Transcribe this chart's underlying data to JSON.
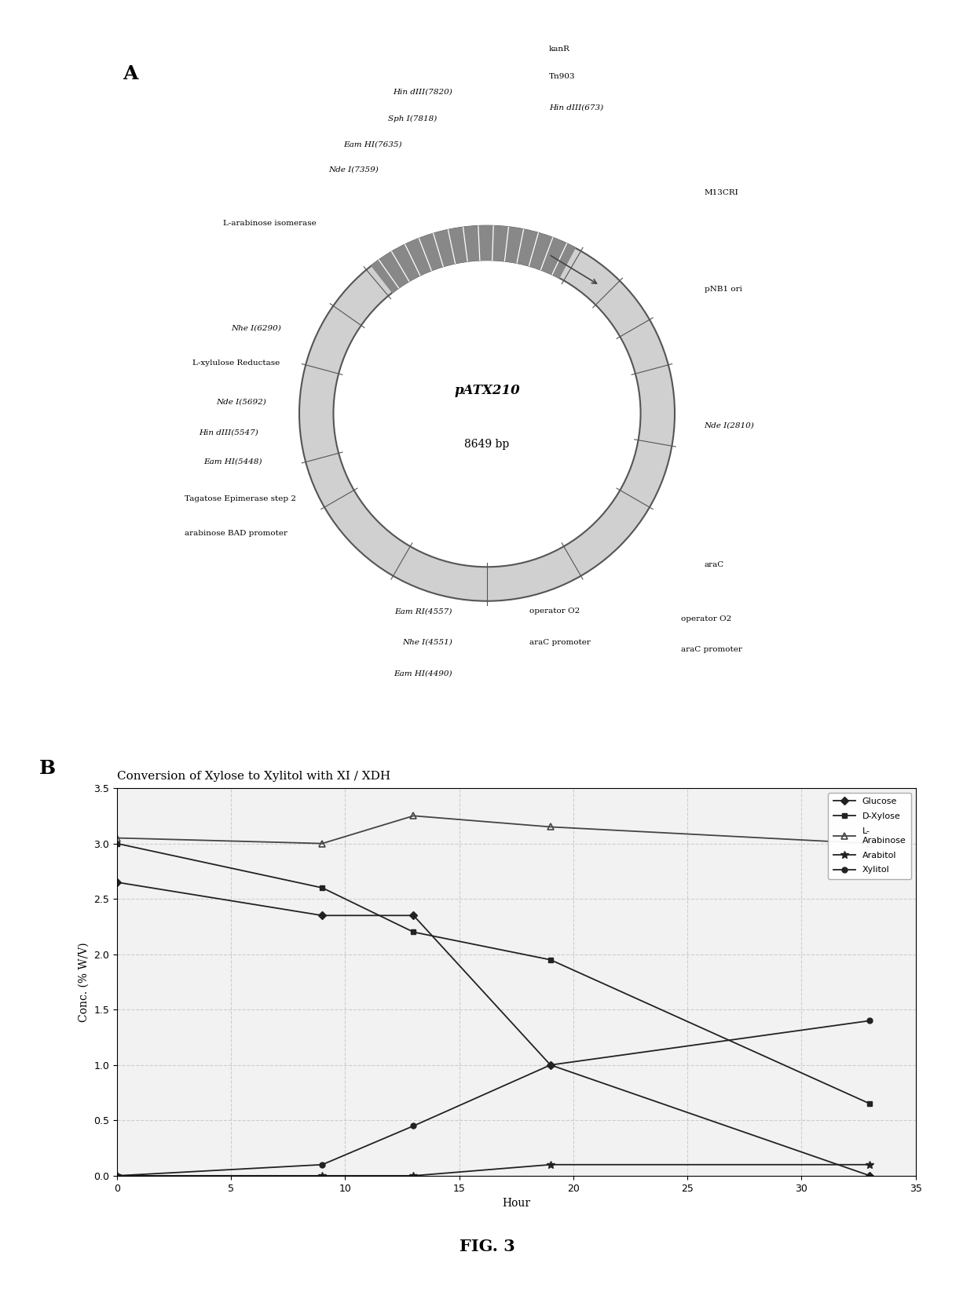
{
  "title": "FIG. 3",
  "panel_a_label": "A",
  "panel_b_label": "B",
  "plasmid_name": "pATX210",
  "plasmid_bp": "8649 bp",
  "chart_title": "Conversion of Xylose to Xylitol with XI / XDH",
  "xlabel": "Hour",
  "ylabel": "Conc. (% W/V)",
  "xlim": [
    0,
    35
  ],
  "ylim": [
    0,
    3.5
  ],
  "xticks": [
    0,
    5,
    10,
    15,
    20,
    25,
    30,
    35
  ],
  "yticks": [
    0,
    0.5,
    1.0,
    1.5,
    2.0,
    2.5,
    3.0,
    3.5
  ],
  "series": {
    "Glucose": {
      "x": [
        0,
        9,
        13,
        19,
        33
      ],
      "y": [
        2.65,
        2.35,
        2.35,
        1.0,
        0.0
      ]
    },
    "D-Xylose": {
      "x": [
        0,
        9,
        13,
        19,
        33
      ],
      "y": [
        3.0,
        2.6,
        2.2,
        1.95,
        0.65
      ]
    },
    "L-Arabinose": {
      "x": [
        0,
        9,
        13,
        19,
        33
      ],
      "y": [
        3.05,
        3.0,
        3.25,
        3.15,
        3.0
      ]
    },
    "Arabitol": {
      "x": [
        0,
        9,
        13,
        19,
        33
      ],
      "y": [
        0.0,
        0.0,
        0.0,
        0.1,
        0.1
      ]
    },
    "Xylitol": {
      "x": [
        0,
        9,
        13,
        19,
        33
      ],
      "y": [
        0.0,
        0.1,
        0.45,
        1.0,
        1.4
      ]
    }
  },
  "background_color": "#ffffff"
}
